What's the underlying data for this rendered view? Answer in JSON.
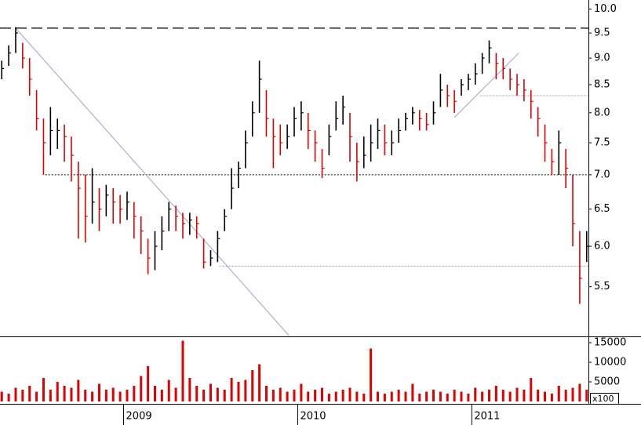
{
  "chart_data": [
    {
      "type": "ohlc",
      "log_scale": true,
      "x": [
        2008.3,
        2008.34,
        2008.38,
        2008.42,
        2008.46,
        2008.5,
        2008.54,
        2008.58,
        2008.62,
        2008.66,
        2008.7,
        2008.74,
        2008.78,
        2008.82,
        2008.86,
        2008.9,
        2008.94,
        2008.98,
        2009.02,
        2009.06,
        2009.1,
        2009.14,
        2009.18,
        2009.22,
        2009.26,
        2009.3,
        2009.34,
        2009.38,
        2009.42,
        2009.46,
        2009.5,
        2009.54,
        2009.58,
        2009.62,
        2009.66,
        2009.7,
        2009.74,
        2009.78,
        2009.82,
        2009.86,
        2009.9,
        2009.94,
        2009.98,
        2010.02,
        2010.06,
        2010.1,
        2010.14,
        2010.18,
        2010.22,
        2010.26,
        2010.3,
        2010.34,
        2010.38,
        2010.42,
        2010.46,
        2010.5,
        2010.54,
        2010.58,
        2010.62,
        2010.66,
        2010.7,
        2010.74,
        2010.78,
        2010.82,
        2010.86,
        2010.9,
        2010.94,
        2010.98,
        2011.02,
        2011.06,
        2011.1,
        2011.14,
        2011.18,
        2011.22,
        2011.26,
        2011.3,
        2011.34,
        2011.38,
        2011.42,
        2011.46,
        2011.5,
        2011.54,
        2011.58,
        2011.62,
        2011.66
      ],
      "high": [
        8.95,
        9.25,
        9.62,
        9.3,
        9.0,
        8.4,
        7.9,
        8.1,
        7.9,
        7.8,
        7.6,
        7.2,
        7.0,
        7.1,
        6.8,
        6.85,
        6.8,
        6.7,
        6.75,
        6.6,
        6.4,
        6.1,
        6.2,
        6.4,
        6.6,
        6.55,
        6.45,
        6.45,
        6.4,
        6.1,
        5.95,
        6.2,
        6.5,
        7.1,
        7.2,
        7.7,
        8.2,
        8.95,
        8.4,
        7.9,
        7.8,
        7.8,
        8.1,
        8.2,
        8.0,
        7.7,
        7.4,
        7.8,
        8.2,
        8.3,
        8.0,
        7.5,
        7.6,
        7.8,
        7.9,
        7.8,
        7.7,
        7.9,
        8.0,
        8.1,
        8.05,
        8.0,
        8.2,
        8.7,
        8.5,
        8.4,
        8.6,
        8.7,
        8.9,
        9.1,
        9.35,
        9.1,
        9.0,
        8.8,
        8.7,
        8.6,
        8.4,
        8.1,
        7.8,
        7.4,
        7.7,
        7.4,
        7.0,
        6.2,
        6.2
      ],
      "low": [
        8.6,
        8.85,
        9.1,
        8.8,
        8.3,
        7.7,
        7.0,
        7.3,
        7.4,
        7.2,
        6.9,
        6.1,
        6.05,
        6.3,
        6.2,
        6.4,
        6.3,
        6.3,
        6.35,
        6.1,
        5.9,
        5.65,
        5.7,
        5.95,
        6.2,
        6.2,
        6.1,
        6.15,
        6.1,
        5.72,
        5.75,
        5.8,
        6.2,
        6.5,
        6.8,
        7.1,
        7.6,
        8.0,
        7.6,
        7.1,
        7.3,
        7.4,
        7.6,
        7.7,
        7.4,
        7.2,
        6.95,
        7.3,
        7.7,
        7.8,
        7.2,
        6.9,
        7.1,
        7.2,
        7.4,
        7.3,
        7.3,
        7.5,
        7.7,
        7.8,
        7.7,
        7.7,
        7.8,
        8.1,
        8.1,
        8.0,
        8.3,
        8.4,
        8.5,
        8.7,
        8.9,
        8.6,
        8.6,
        8.4,
        8.3,
        8.2,
        7.9,
        7.6,
        7.2,
        7.0,
        7.0,
        6.8,
        6.0,
        5.3,
        5.8
      ],
      "close": [
        8.8,
        9.1,
        9.5,
        9.0,
        8.6,
        7.9,
        7.5,
        7.7,
        7.7,
        7.6,
        7.3,
        6.8,
        6.4,
        6.6,
        6.5,
        6.7,
        6.6,
        6.5,
        6.6,
        6.4,
        6.2,
        5.85,
        6.0,
        6.2,
        6.5,
        6.4,
        6.3,
        6.35,
        6.3,
        5.8,
        5.85,
        6.1,
        6.4,
        6.8,
        7.1,
        7.5,
        8.0,
        8.6,
        7.9,
        7.6,
        7.5,
        7.6,
        7.9,
        8.0,
        7.7,
        7.5,
        7.1,
        7.6,
        7.9,
        8.1,
        7.6,
        7.2,
        7.3,
        7.5,
        7.7,
        7.5,
        7.5,
        7.7,
        7.9,
        8.0,
        7.9,
        7.8,
        8.0,
        8.4,
        8.3,
        8.2,
        8.5,
        8.6,
        8.7,
        9.0,
        9.2,
        8.9,
        8.8,
        8.6,
        8.5,
        8.4,
        8.2,
        7.9,
        7.5,
        7.2,
        7.5,
        7.1,
        6.3,
        5.6,
        6.0
      ],
      "up_color": "#000000",
      "down_color": "#e00000",
      "xlim": [
        2008.29,
        2011.67
      ],
      "xticks": [
        2009,
        2010,
        2011
      ],
      "ylim": [
        4.95,
        10.2
      ],
      "yticks": [
        {
          "value": 10,
          "label": "10.0"
        },
        9.5,
        {
          "value": 9,
          "label": "9.0"
        },
        8.5,
        {
          "value": 8,
          "label": "8.0"
        },
        7.5,
        {
          "value": 7,
          "label": "7.0"
        },
        6.5,
        {
          "value": 6,
          "label": "6.0"
        },
        5.5
      ],
      "hlines": [
        {
          "value": 9.6,
          "from": 2008.29,
          "style": "dashed",
          "color": "#000000"
        },
        {
          "value": 7.0,
          "from": 2008.55,
          "style": "dotted",
          "color": "#000000"
        },
        {
          "value": 5.75,
          "from": 2009.55,
          "style": "dotted",
          "color": "#9a9ab0"
        },
        {
          "value": 8.3,
          "from": 2011.05,
          "style": "dotted",
          "color": "#9a9ab0"
        }
      ],
      "trend_lines": [
        {
          "x": [
            2008.38,
            2009.95
          ],
          "y": [
            9.6,
            4.95
          ],
          "color": "#9fa4d0"
        },
        {
          "x": [
            2010.9,
            2011.27
          ],
          "y": [
            7.92,
            9.1
          ],
          "color": "#9fa4d0"
        }
      ]
    },
    {
      "type": "bar",
      "x": [
        2008.3,
        2008.34,
        2008.38,
        2008.42,
        2008.46,
        2008.5,
        2008.54,
        2008.58,
        2008.62,
        2008.66,
        2008.7,
        2008.74,
        2008.78,
        2008.82,
        2008.86,
        2008.9,
        2008.94,
        2008.98,
        2009.02,
        2009.06,
        2009.1,
        2009.14,
        2009.18,
        2009.22,
        2009.26,
        2009.3,
        2009.34,
        2009.38,
        2009.42,
        2009.46,
        2009.5,
        2009.54,
        2009.58,
        2009.62,
        2009.66,
        2009.7,
        2009.74,
        2009.78,
        2009.82,
        2009.86,
        2009.9,
        2009.94,
        2009.98,
        2010.02,
        2010.06,
        2010.1,
        2010.14,
        2010.18,
        2010.22,
        2010.26,
        2010.3,
        2010.34,
        2010.38,
        2010.42,
        2010.46,
        2010.5,
        2010.54,
        2010.58,
        2010.62,
        2010.66,
        2010.7,
        2010.74,
        2010.78,
        2010.82,
        2010.86,
        2010.9,
        2010.94,
        2010.98,
        2011.02,
        2011.06,
        2011.1,
        2011.14,
        2011.18,
        2011.22,
        2011.26,
        2011.3,
        2011.34,
        2011.38,
        2011.42,
        2011.46,
        2011.5,
        2011.54,
        2011.58,
        2011.62,
        2011.66
      ],
      "values": [
        2500,
        2000,
        3500,
        3000,
        4000,
        2500,
        6000,
        3000,
        5000,
        4000,
        3500,
        5500,
        3000,
        2500,
        4500,
        3000,
        3500,
        2500,
        3000,
        4000,
        6500,
        9000,
        4000,
        3000,
        5500,
        3500,
        15500,
        6000,
        4000,
        3000,
        4500,
        3500,
        3000,
        6000,
        5000,
        5500,
        8000,
        9500,
        4000,
        3000,
        3500,
        2500,
        3000,
        4500,
        2500,
        3000,
        3500,
        2000,
        2500,
        3000,
        3500,
        2500,
        2000,
        13500,
        2500,
        2000,
        2500,
        3000,
        2500,
        4500,
        2000,
        2500,
        3000,
        2500,
        2000,
        3000,
        2500,
        2000,
        3500,
        2500,
        3000,
        4000,
        3000,
        2500,
        3500,
        3000,
        6000,
        3000,
        2500,
        2000,
        4000,
        3000,
        3500,
        4500,
        3000
      ],
      "color": "#e00000",
      "ylim": [
        0,
        16400
      ],
      "yticks": [
        5000,
        10000,
        15000
      ],
      "unit_label": "x100"
    }
  ]
}
